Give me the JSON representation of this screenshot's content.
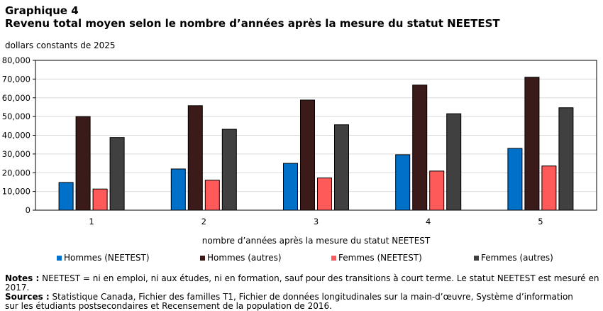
{
  "header": {
    "label": "Graphique 4",
    "title": "Revenu total moyen selon le nombre d’années après la mesure du statut NEETEST"
  },
  "units": "dollars constants de 2025",
  "chart_data": {
    "type": "bar",
    "categories": [
      "1",
      "2",
      "3",
      "4",
      "5"
    ],
    "series": [
      {
        "name": "Hommes (NEETEST)",
        "color": "#0070c8",
        "values": [
          14800,
          22000,
          25000,
          29600,
          33000
        ]
      },
      {
        "name": "Hommes (autres)",
        "color": "#3b1a1a",
        "values": [
          50000,
          55800,
          58800,
          66800,
          71000
        ]
      },
      {
        "name": "Femmes (NEETEST)",
        "color": "#ff5a5a",
        "values": [
          11300,
          16000,
          17200,
          20900,
          23600
        ]
      },
      {
        "name": "Femmes (autres)",
        "color": "#404040",
        "values": [
          38800,
          43200,
          45600,
          51500,
          54700
        ]
      }
    ],
    "ylim": [
      0,
      80000
    ],
    "yticks": [
      "0",
      "10,000",
      "20,000",
      "30,000",
      "40,000",
      "50,000",
      "60,000",
      "70,000",
      "80,000"
    ],
    "xlabel": "nombre d’années après la mesure du statut NEETEST",
    "ylabel": "",
    "grid": true,
    "legend_position": "bottom"
  },
  "notes": {
    "notes_label": "Notes :",
    "notes_text": " NEETEST = ni en emploi, ni aux études, ni en formation, sauf pour des transitions à court terme. Le statut NEETEST est mesuré en 2017.",
    "sources_label": "Sources :",
    "sources_text": " Statistique Canada, Fichier des familles T1, Fichier de données longitudinales sur la main-d’œuvre, Système d’information",
    "sources_text_2": "sur les étudiants postsecondaires et Recensement de la population de 2016."
  }
}
